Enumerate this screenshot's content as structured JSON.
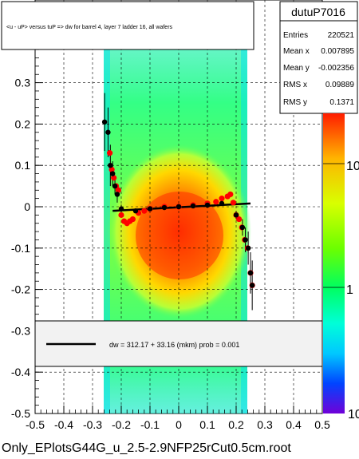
{
  "chart_data": {
    "type": "scatter",
    "title": "<u - uP>       versus  tuP =>  dw for barrel 4, layer 7 ladder 16, all wafers",
    "xlabel": "",
    "ylabel": "",
    "xlim": [
      -0.5,
      0.5
    ],
    "ylim": [
      -0.5,
      0.5
    ],
    "x_ticks": [
      "-0.5",
      "-0.4",
      "-0.3",
      "-0.2",
      "-0.1",
      "0",
      "0.1",
      "0.2",
      "0.3",
      "0.4",
      "0.5"
    ],
    "y_ticks": [
      "-0.5",
      "-0.4",
      "-0.3",
      "-0.2",
      "-0.1",
      "0",
      "0.1",
      "0.2",
      "0.3"
    ],
    "grid": true,
    "colorbar": {
      "scale": "log",
      "labels": [
        "1",
        "10"
      ],
      "partial_bottom_label": "10"
    },
    "stats_box": {
      "name": "dutuP7016",
      "rows": [
        {
          "label": "Entries",
          "value": "220521"
        },
        {
          "label": "Mean x",
          "value": "0.007895"
        },
        {
          "label": "Mean y",
          "value": "-0.002356"
        },
        {
          "label": "RMS x",
          "value": "0.09889"
        },
        {
          "label": "RMS y",
          "value": "0.1371"
        }
      ]
    },
    "fit_legend": {
      "text": "dw =  312.17 + 33.16 (mkm) prob = 0.001"
    },
    "profile_black": [
      {
        "x": -0.258,
        "y": 0.205,
        "err": 0.07
      },
      {
        "x": -0.246,
        "y": 0.18,
        "err": 0.06
      },
      {
        "x": -0.238,
        "y": 0.1,
        "err": 0.05
      },
      {
        "x": -0.23,
        "y": 0.08,
        "err": 0.03
      },
      {
        "x": -0.222,
        "y": 0.05,
        "err": 0.02
      },
      {
        "x": -0.214,
        "y": 0.03,
        "err": 0.02
      },
      {
        "x": -0.2,
        "y": -0.005,
        "err": 0.01
      },
      {
        "x": -0.15,
        "y": -0.01,
        "err": 0.005
      },
      {
        "x": -0.1,
        "y": -0.005,
        "err": 0.005
      },
      {
        "x": -0.05,
        "y": -0.002,
        "err": 0.005
      },
      {
        "x": 0.0,
        "y": 0.0,
        "err": 0.005
      },
      {
        "x": 0.05,
        "y": 0.002,
        "err": 0.005
      },
      {
        "x": 0.1,
        "y": 0.004,
        "err": 0.005
      },
      {
        "x": 0.15,
        "y": 0.008,
        "err": 0.005
      },
      {
        "x": 0.2,
        "y": -0.02,
        "err": 0.01
      },
      {
        "x": 0.222,
        "y": -0.05,
        "err": 0.02
      },
      {
        "x": 0.232,
        "y": -0.08,
        "err": 0.03
      },
      {
        "x": 0.242,
        "y": -0.1,
        "err": 0.04
      },
      {
        "x": 0.25,
        "y": -0.16,
        "err": 0.05
      },
      {
        "x": 0.256,
        "y": -0.19,
        "err": 0.06
      }
    ],
    "profile_red": [
      {
        "x": -0.24,
        "y": 0.13
      },
      {
        "x": -0.233,
        "y": 0.09
      },
      {
        "x": -0.226,
        "y": 0.07
      },
      {
        "x": -0.218,
        "y": 0.05
      },
      {
        "x": -0.21,
        "y": 0.04
      },
      {
        "x": -0.2,
        "y": -0.02
      },
      {
        "x": -0.19,
        "y": -0.035
      },
      {
        "x": -0.18,
        "y": -0.04
      },
      {
        "x": -0.17,
        "y": -0.035
      },
      {
        "x": -0.16,
        "y": -0.03
      },
      {
        "x": -0.14,
        "y": -0.015
      },
      {
        "x": -0.12,
        "y": -0.01
      },
      {
        "x": -0.1,
        "y": -0.005
      },
      {
        "x": -0.05,
        "y": 0.0
      },
      {
        "x": 0.0,
        "y": 0.0
      },
      {
        "x": 0.05,
        "y": 0.004
      },
      {
        "x": 0.1,
        "y": 0.008
      },
      {
        "x": 0.13,
        "y": 0.012
      },
      {
        "x": 0.15,
        "y": 0.02
      },
      {
        "x": 0.17,
        "y": 0.025
      },
      {
        "x": 0.18,
        "y": 0.03
      },
      {
        "x": 0.19,
        "y": 0.01
      },
      {
        "x": 0.2,
        "y": -0.02
      },
      {
        "x": 0.21,
        "y": -0.03
      },
      {
        "x": 0.22,
        "y": -0.05
      },
      {
        "x": 0.23,
        "y": -0.08
      },
      {
        "x": 0.24,
        "y": -0.1
      },
      {
        "x": 0.25,
        "y": -0.16
      },
      {
        "x": 0.256,
        "y": -0.19
      }
    ],
    "fit_line": {
      "x": [
        -0.23,
        0.25
      ],
      "y": [
        -0.01,
        0.008
      ]
    }
  },
  "footer": {
    "filename": "Only_EPlotsG44G_u_2.5-2.9NFP25rCut0.5cm.root"
  },
  "colors": {
    "fit": "#000000",
    "red_points": "#ff0000",
    "black_points": "#000000"
  }
}
